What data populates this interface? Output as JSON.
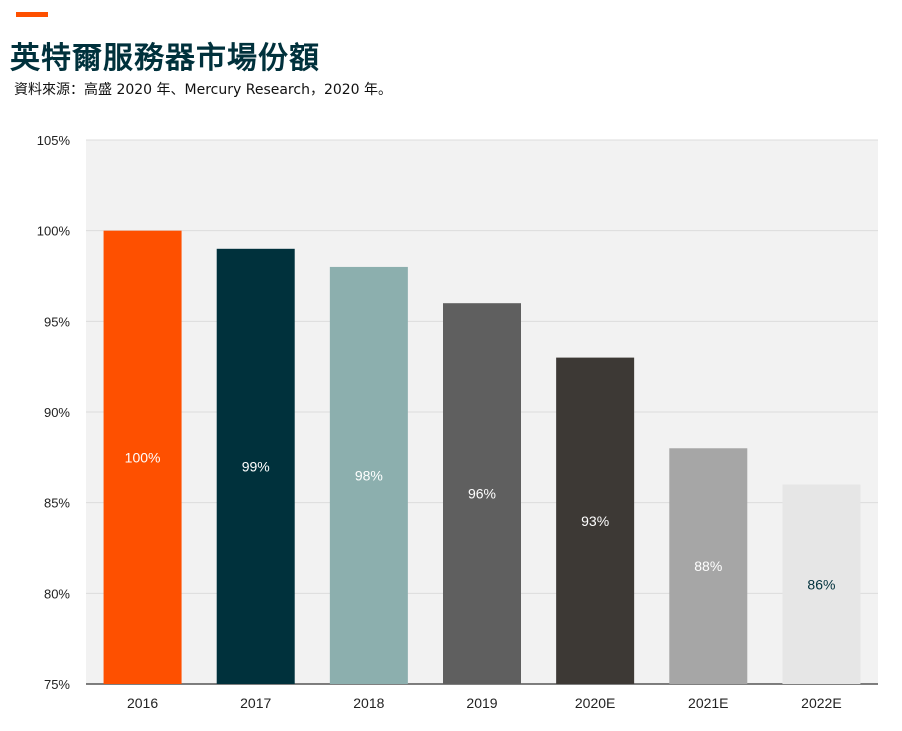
{
  "header": {
    "title": "英特爾服務器市場份額",
    "source": "資料來源：高盛 2020 年、Mercury  Research，2020 年。"
  },
  "colors": {
    "accent": "#fe5000",
    "title": "#00313c",
    "plot_background": "#f2f2f2",
    "gridline": "#dcdcdc"
  },
  "chart_data": {
    "type": "bar",
    "title": "英特爾服務器市場份額",
    "xlabel": "",
    "ylabel": "",
    "categories": [
      "2016",
      "2017",
      "2018",
      "2019",
      "2020E",
      "2021E",
      "2022E"
    ],
    "values": [
      100,
      99,
      98,
      96,
      93,
      88,
      86
    ],
    "data_labels": [
      "100%",
      "99%",
      "98%",
      "96%",
      "93%",
      "88%",
      "86%"
    ],
    "bar_colors": [
      "#fe5000",
      "#00313c",
      "#8cafae",
      "#5f5f5f",
      "#3d3935",
      "#a6a6a6",
      "#e6e6e6"
    ],
    "label_colors": [
      "#ffffff",
      "#ffffff",
      "#ffffff",
      "#ffffff",
      "#ffffff",
      "#ffffff",
      "#00313c"
    ],
    "ylim": [
      75,
      105
    ],
    "yticks": [
      75,
      80,
      85,
      90,
      95,
      100,
      105
    ],
    "ytick_labels": [
      "75%",
      "80%",
      "85%",
      "90%",
      "95%",
      "100%",
      "105%"
    ],
    "grid": true,
    "legend": "none"
  }
}
